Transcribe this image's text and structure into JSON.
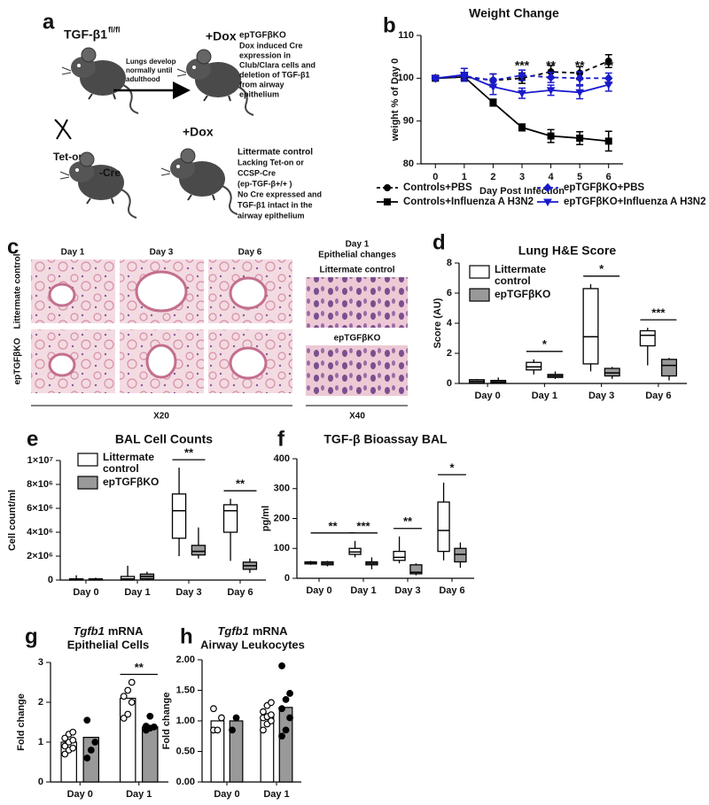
{
  "panel_a": {
    "label": "a",
    "mouse_flox": "TGF-β1",
    "flox_sup": "fl/fl",
    "arrow_text": [
      "Lungs develop",
      "normally until",
      "adulthood"
    ],
    "dox_top": "+Dox",
    "ko_name": "epTGFβKO",
    "ko_desc": [
      "Dox induced Cre",
      "expression in",
      "Club/Clara cells  and",
      "deletion of TGF-β1",
      "from airway",
      "epithelium"
    ],
    "cre_mouse": "Tet-on",
    "cre_suffix": "-Cre",
    "dox_bottom": "+Dox",
    "control_desc": [
      "Littermate control",
      "Lacking Tet-on or",
      "CCSP-Cre",
      "(ep-TGF-β+/+ )",
      "No Cre expressed and",
      "TGF-β1  intact  in  the",
      "airway epithelium"
    ]
  },
  "panel_c": {
    "label": "c",
    "columns": [
      "Day 1",
      "Day 3",
      "Day 6"
    ],
    "rows": [
      "Littermate control",
      "epTGFβKO"
    ],
    "scale_left": "X20",
    "right_title": [
      "Day 1",
      "Epithelial changes"
    ],
    "right_rows": [
      "Littermate control",
      "epTGFβKO"
    ],
    "scale_right": "X40"
  },
  "chart_data": [
    {
      "type": "line",
      "panel": "b",
      "title": "Weight Change",
      "xlabel": "Day Post Infection",
      "ylabel": "weight % of Day 0",
      "x": [
        0,
        1,
        2,
        3,
        4,
        5,
        6
      ],
      "xlim": [
        -0.5,
        6.5
      ],
      "xticks": [
        0,
        1,
        2,
        3,
        4,
        5,
        6
      ],
      "ylim": [
        80,
        110
      ],
      "yticks": [
        80,
        90,
        100,
        110
      ],
      "series": [
        {
          "name": "Controls+PBS",
          "color": "#000000",
          "line_style": "dashed",
          "marker": "circle",
          "values": [
            100,
            100.3,
            99.5,
            100,
            101.5,
            101.2,
            104
          ],
          "errors": [
            0.3,
            0.8,
            1.5,
            1.2,
            1.5,
            1.5,
            1.5
          ]
        },
        {
          "name": "Controls+Influenza A H3N2",
          "color": "#000000",
          "line_style": "solid",
          "marker": "square",
          "values": [
            100,
            100.3,
            94.3,
            88.5,
            86.5,
            86,
            85.3
          ],
          "errors": [
            0.3,
            0.5,
            0.8,
            0.8,
            1.5,
            1.5,
            2.3
          ]
        },
        {
          "name": "epTGFβKO+PBS",
          "color": "#1a1acc",
          "line_style": "dashed",
          "marker": "diamond",
          "values": [
            100,
            100.5,
            99.5,
            100.7,
            100.2,
            100,
            100
          ],
          "errors": [
            0.3,
            0.8,
            1.5,
            1.2,
            1.2,
            1.5,
            1.2
          ]
        },
        {
          "name": "epTGFβKO+Influenza A H3N2",
          "color": "#1a1acc",
          "line_style": "solid",
          "marker": "triangle-down",
          "values": [
            100,
            100.8,
            98,
            96.5,
            97.2,
            96.7,
            98.5
          ],
          "errors": [
            0.3,
            1.5,
            1.8,
            1.2,
            1.2,
            1.5,
            1.5
          ]
        }
      ],
      "annotations": [
        {
          "text": "***",
          "x": 3
        },
        {
          "text": "**",
          "x": 4
        },
        {
          "text": "**",
          "x": 5
        },
        {
          "text": "**",
          "x": 6
        }
      ]
    },
    {
      "type": "box",
      "panel": "d",
      "title": "Lung H&E Score",
      "ylabel": "Score (AU)",
      "legend": true,
      "categories": [
        "Day 0",
        "Day 1",
        "Day 3",
        "Day 6"
      ],
      "ylim": [
        0,
        8
      ],
      "yticks": [
        0,
        2,
        4,
        6,
        8
      ],
      "series": [
        {
          "name": "Littermate control",
          "color": "#ffffff",
          "boxes": [
            {
              "min": 0,
              "q1": 0.05,
              "median": 0.15,
              "q3": 0.25,
              "max": 0.3
            },
            {
              "min": 0.6,
              "q1": 0.9,
              "median": 1.1,
              "q3": 1.4,
              "max": 1.6
            },
            {
              "min": 0.8,
              "q1": 1.3,
              "median": 3.1,
              "q3": 6.3,
              "max": 6.6
            },
            {
              "min": 1.2,
              "q1": 2.5,
              "median": 3.2,
              "q3": 3.5,
              "max": 3.7
            }
          ]
        },
        {
          "name": "epTGFβKO",
          "color": "#999999",
          "boxes": [
            {
              "min": 0,
              "q1": 0.05,
              "median": 0.1,
              "q3": 0.2,
              "max": 0.4
            },
            {
              "min": 0.3,
              "q1": 0.4,
              "median": 0.5,
              "q3": 0.6,
              "max": 0.8
            },
            {
              "min": 0.3,
              "q1": 0.5,
              "median": 0.7,
              "q3": 1.0,
              "max": 1.1
            },
            {
              "min": 0.2,
              "q1": 0.5,
              "median": 1.2,
              "q3": 1.6,
              "max": 1.7
            }
          ]
        }
      ],
      "annotations": [
        {
          "text": "*",
          "from": "Day 1",
          "to": "Day 1"
        },
        {
          "text": "*",
          "from": "Day 3",
          "to": "Day 3"
        },
        {
          "text": "***",
          "from": "Day 6",
          "to": "Day 6"
        }
      ]
    },
    {
      "type": "box",
      "panel": "e",
      "title": "BAL Cell Counts",
      "ylabel": "Cell count/ml",
      "legend": true,
      "categories": [
        "Day 0",
        "Day 1",
        "Day 3",
        "Day 6"
      ],
      "ylim": [
        0,
        10000000
      ],
      "yticks": [
        0,
        {
          "value": 2000000,
          "label": "2×10⁶"
        },
        {
          "value": 4000000,
          "label": "4×10⁶"
        },
        {
          "value": 6000000,
          "label": "6×10⁶"
        },
        {
          "value": 8000000,
          "label": "8×10⁶"
        },
        {
          "value": 10000000,
          "label": "1×10⁷"
        }
      ],
      "series": [
        {
          "name": "Littermate control",
          "color": "#ffffff",
          "boxes": [
            {
              "min": 0,
              "q1": 0,
              "median": 50000,
              "q3": 100000,
              "max": 400000
            },
            {
              "min": 0,
              "q1": 0,
              "median": 100000,
              "q3": 300000,
              "max": 1200000
            },
            {
              "min": 2000000,
              "q1": 3500000,
              "median": 5800000,
              "q3": 7200000,
              "max": 9400000
            },
            {
              "min": 1600000,
              "q1": 4000000,
              "median": 5800000,
              "q3": 6300000,
              "max": 6800000
            }
          ]
        },
        {
          "name": "epTGFβKO",
          "color": "#999999",
          "boxes": [
            {
              "min": 0,
              "q1": 0,
              "median": 50000,
              "q3": 100000,
              "max": 200000
            },
            {
              "min": 0,
              "q1": 100000,
              "median": 300000,
              "q3": 500000,
              "max": 700000
            },
            {
              "min": 1800000,
              "q1": 2100000,
              "median": 2400000,
              "q3": 2900000,
              "max": 4400000
            },
            {
              "min": 600000,
              "q1": 900000,
              "median": 1200000,
              "q3": 1500000,
              "max": 1800000
            }
          ]
        }
      ],
      "annotations": [
        {
          "text": "**",
          "from": "Day 3",
          "to": "Day 3"
        },
        {
          "text": "**",
          "from": "Day 6",
          "to": "Day 6"
        }
      ]
    },
    {
      "type": "box",
      "panel": "f",
      "title": "TGF-β Bioassay BAL",
      "ylabel": "pg/ml",
      "legend": false,
      "categories": [
        "Day 0",
        "Day 1",
        "Day 3",
        "Day 6"
      ],
      "ylim": [
        0,
        400
      ],
      "yticks": [
        0,
        100,
        200,
        300,
        400
      ],
      "series": [
        {
          "name": "Littermate control",
          "color": "#ffffff",
          "boxes": [
            {
              "min": 45,
              "q1": 48,
              "median": 52,
              "q3": 55,
              "max": 58
            },
            {
              "min": 70,
              "q1": 80,
              "median": 88,
              "q3": 100,
              "max": 125
            },
            {
              "min": 50,
              "q1": 60,
              "median": 70,
              "q3": 90,
              "max": 140
            },
            {
              "min": 60,
              "q1": 90,
              "median": 160,
              "q3": 255,
              "max": 320
            }
          ]
        },
        {
          "name": "epTGFβKO",
          "color": "#999999",
          "boxes": [
            {
              "min": 40,
              "q1": 45,
              "median": 50,
              "q3": 55,
              "max": 58
            },
            {
              "min": 30,
              "q1": 45,
              "median": 50,
              "q3": 55,
              "max": 70
            },
            {
              "min": 10,
              "q1": 15,
              "median": 20,
              "q3": 45,
              "max": 50
            },
            {
              "min": 35,
              "q1": 55,
              "median": 80,
              "q3": 100,
              "max": 120
            }
          ]
        }
      ],
      "annotations": [
        {
          "text": "**",
          "from": "Day 0",
          "to": "Day 1"
        },
        {
          "text": "***",
          "from": "Day 1",
          "to": "Day 1"
        },
        {
          "text": "**",
          "from": "Day 3",
          "to": "Day 3"
        },
        {
          "text": "*",
          "from": "Day 6",
          "to": "Day 6"
        }
      ]
    },
    {
      "type": "bar",
      "panel": "g",
      "title_gene": "Tgfb1",
      "title": "mRNA",
      "subtitle": "Epithelial Cells",
      "ylabel": "Fold change",
      "categories": [
        "Day 0",
        "Day 1"
      ],
      "ylim": [
        0,
        3
      ],
      "yticks": [
        0,
        1,
        2,
        3
      ],
      "series": [
        {
          "color": "#ffffff",
          "point_fill": "#ffffff",
          "values": [
            1.0,
            2.1
          ],
          "points": [
            [
              0.7,
              0.8,
              0.85,
              0.9,
              1.0,
              1.05,
              1.1,
              1.2,
              1.25
            ],
            [
              1.6,
              1.7,
              2.0,
              2.15,
              2.3,
              2.5
            ]
          ]
        },
        {
          "color": "#999999",
          "point_fill": "#000000",
          "values": [
            1.12,
            1.38
          ],
          "points": [
            [
              0.6,
              0.8,
              1.0,
              1.55
            ],
            [
              1.3,
              1.35,
              1.38,
              1.4,
              1.65
            ]
          ]
        }
      ],
      "annotations": [
        {
          "text": "**",
          "from": "Day 1",
          "to": "Day 1"
        }
      ]
    },
    {
      "type": "bar",
      "panel": "h",
      "title_gene": "Tgfb1",
      "title": "mRNA",
      "subtitle": "Airway Leukocytes",
      "ylabel": "Fold change",
      "categories": [
        "Day 0",
        "Day 1"
      ],
      "ylim": [
        0,
        2
      ],
      "yticks": [
        {
          "value": 0,
          "label": "0.00"
        },
        {
          "value": 0.5,
          "label": "0.50"
        },
        {
          "value": 1,
          "label": "1.00"
        },
        {
          "value": 1.5,
          "label": "1.50"
        },
        {
          "value": 2,
          "label": "2.00"
        }
      ],
      "series": [
        {
          "color": "#ffffff",
          "point_fill": "#ffffff",
          "values": [
            1.0,
            1.07
          ],
          "points": [
            [
              0.85,
              0.85,
              1.05,
              1.2
            ],
            [
              0.85,
              0.95,
              1.0,
              1.05,
              1.07,
              1.1,
              1.15,
              1.25,
              1.3
            ]
          ]
        },
        {
          "color": "#999999",
          "point_fill": "#000000",
          "values": [
            1.0,
            1.22
          ],
          "points": [
            [
              0.85,
              1.05
            ],
            [
              0.75,
              0.85,
              1.05,
              1.2,
              1.35,
              1.45,
              1.9
            ]
          ]
        }
      ],
      "annotations": []
    }
  ]
}
